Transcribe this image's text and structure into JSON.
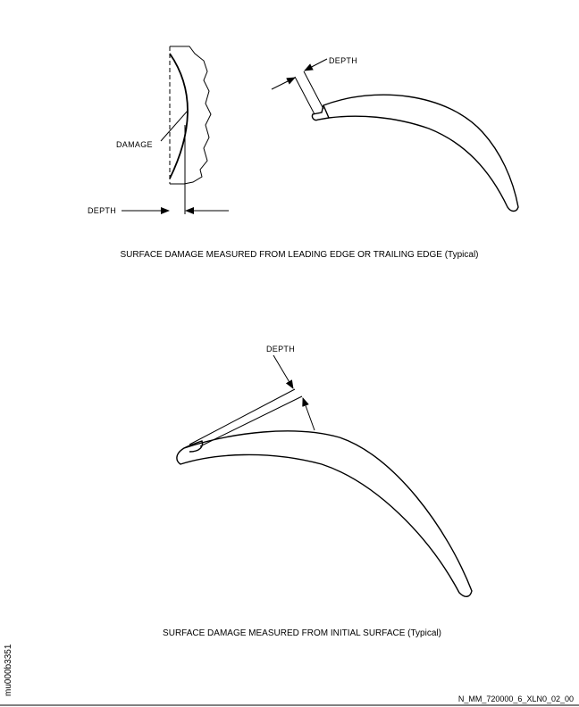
{
  "figure1": {
    "damage_label": "DAMAGE",
    "depth_label_left": "DEPTH",
    "depth_label_right": "DEPTH",
    "caption": "SURFACE DAMAGE MEASURED FROM LEADING EDGE OR TRAILING EDGE (Typical)"
  },
  "figure2": {
    "depth_label": "DEPTH",
    "caption": "SURFACE DAMAGE MEASURED FROM INITIAL SURFACE (Typical)"
  },
  "side_id": "mu000b3351",
  "drawing_ref": "N_MM_720000_6_XLN0_02_00",
  "colors": {
    "line": "#000000",
    "background": "#ffffff"
  }
}
